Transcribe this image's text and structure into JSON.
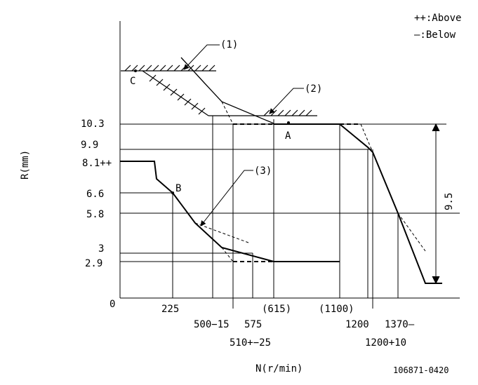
{
  "legend": {
    "above": "++:Above",
    "below": "—:Below"
  },
  "axes": {
    "x_label": "N(r/min)",
    "y_label": "R(mm)",
    "origin": "0"
  },
  "y_ticks": [
    "10.3",
    "9.9",
    "8.1++",
    "6.6",
    "5.8",
    "3",
    "2.9"
  ],
  "x_ticks": [
    "225",
    "500−15",
    "510+−25",
    "575",
    "(615)",
    "(1100)",
    "1200",
    "1200+10",
    "1370—"
  ],
  "points": {
    "a": "A",
    "b": "B",
    "c": "C"
  },
  "callouts": [
    "(1)",
    "(2)",
    "(3)"
  ],
  "dimension": "9.5",
  "drawing_number": "106871-0420"
}
